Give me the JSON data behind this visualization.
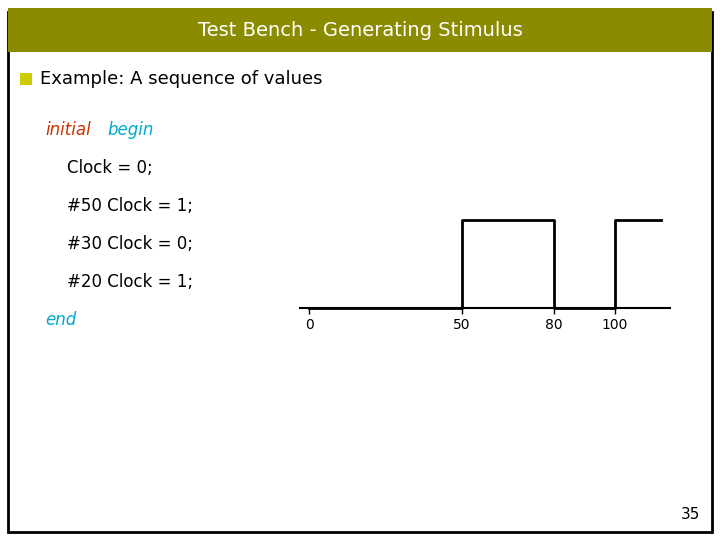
{
  "title": "Test Bench - Generating Stimulus",
  "title_bg": "#8B8B00",
  "title_fg": "#ffffff",
  "slide_bg": "#ffffff",
  "slide_border": "#000000",
  "bullet_text": "Example: A sequence of values",
  "bullet_color": "#000000",
  "bullet_marker_color": "#cccc00",
  "initial_color": "#cc3300",
  "begin_end_color": "#00aacc",
  "code_color": "#000000",
  "code_indent_lines": [
    "Clock = 0;",
    "#50 Clock = 1;",
    "#30 Clock = 0;",
    "#20 Clock = 1;"
  ],
  "waveform_x": [
    0,
    50,
    50,
    80,
    80,
    100,
    100,
    115
  ],
  "waveform_y": [
    0,
    0,
    1,
    1,
    0,
    0,
    1,
    1
  ],
  "waveform_xticks": [
    0,
    50,
    80,
    100
  ],
  "waveform_color": "#000000",
  "page_number": "35"
}
